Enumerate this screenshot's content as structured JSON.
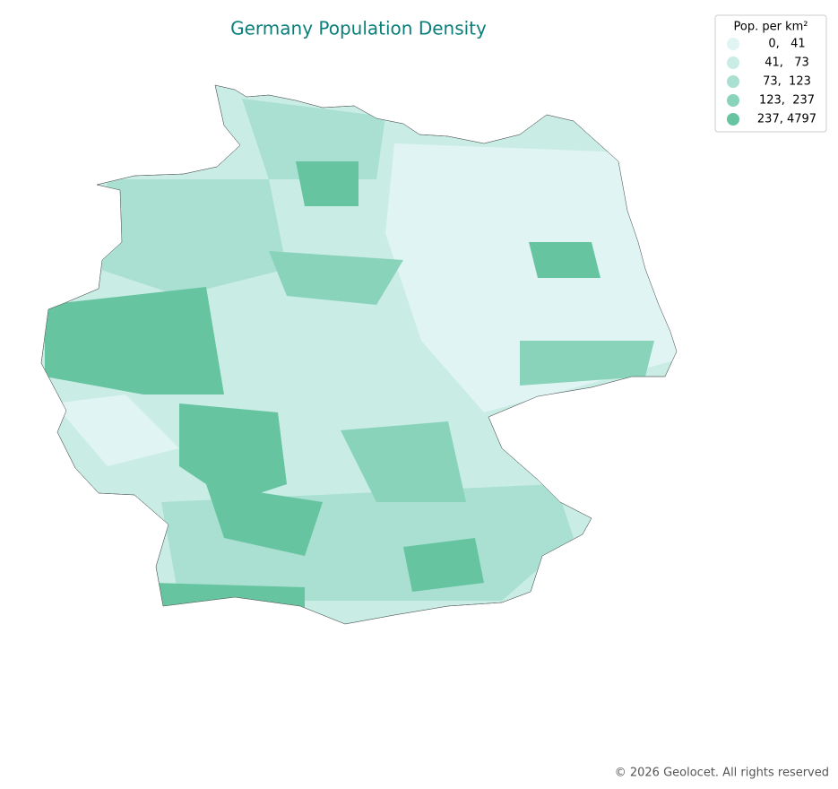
{
  "title": "Germany Population Density",
  "legend": {
    "title": "Pop. per km²",
    "items": [
      {
        "label": "0,   41",
        "color": "#e0f4f3"
      },
      {
        "label": "41,   73",
        "color": "#c9ece5"
      },
      {
        "label": "73,  123",
        "color": "#a9e0d1"
      },
      {
        "label": "123,  237",
        "color": "#88d3b9"
      },
      {
        "label": "237, 4797",
        "color": "#66c4a0"
      }
    ]
  },
  "footer": "© 2026 Geolocet. All rights reserved"
}
